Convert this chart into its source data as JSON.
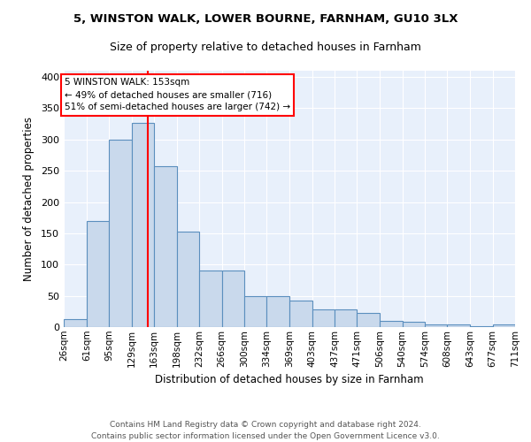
{
  "title1": "5, WINSTON WALK, LOWER BOURNE, FARNHAM, GU10 3LX",
  "title2": "Size of property relative to detached houses in Farnham",
  "xlabel": "Distribution of detached houses by size in Farnham",
  "ylabel": "Number of detached properties",
  "bar_color": "#c9d9ec",
  "bar_edge_color": "#5b8fbe",
  "background_color": "#e8f0fb",
  "grid_color": "white",
  "red_line_x": 153,
  "annotation_line1": "5 WINSTON WALK: 153sqm",
  "annotation_line2": "← 49% of detached houses are smaller (716)",
  "annotation_line3": "51% of semi-detached houses are larger (742) →",
  "bin_edges": [
    26,
    61,
    95,
    129,
    163,
    198,
    232,
    266,
    300,
    334,
    369,
    403,
    437,
    471,
    506,
    540,
    574,
    608,
    643,
    677,
    711
  ],
  "bar_heights": [
    13,
    170,
    300,
    327,
    257,
    152,
    91,
    91,
    50,
    50,
    43,
    28,
    28,
    22,
    10,
    9,
    4,
    4,
    2,
    4
  ],
  "footer_text": "Contains HM Land Registry data © Crown copyright and database right 2024.\nContains public sector information licensed under the Open Government Licence v3.0.",
  "ylim": [
    0,
    410
  ],
  "yticks": [
    0,
    50,
    100,
    150,
    200,
    250,
    300,
    350,
    400
  ],
  "tick_labels": [
    "26sqm",
    "61sqm",
    "95sqm",
    "129sqm",
    "163sqm",
    "198sqm",
    "232sqm",
    "266sqm",
    "300sqm",
    "334sqm",
    "369sqm",
    "403sqm",
    "437sqm",
    "471sqm",
    "506sqm",
    "540sqm",
    "574sqm",
    "608sqm",
    "643sqm",
    "677sqm",
    "711sqm"
  ]
}
